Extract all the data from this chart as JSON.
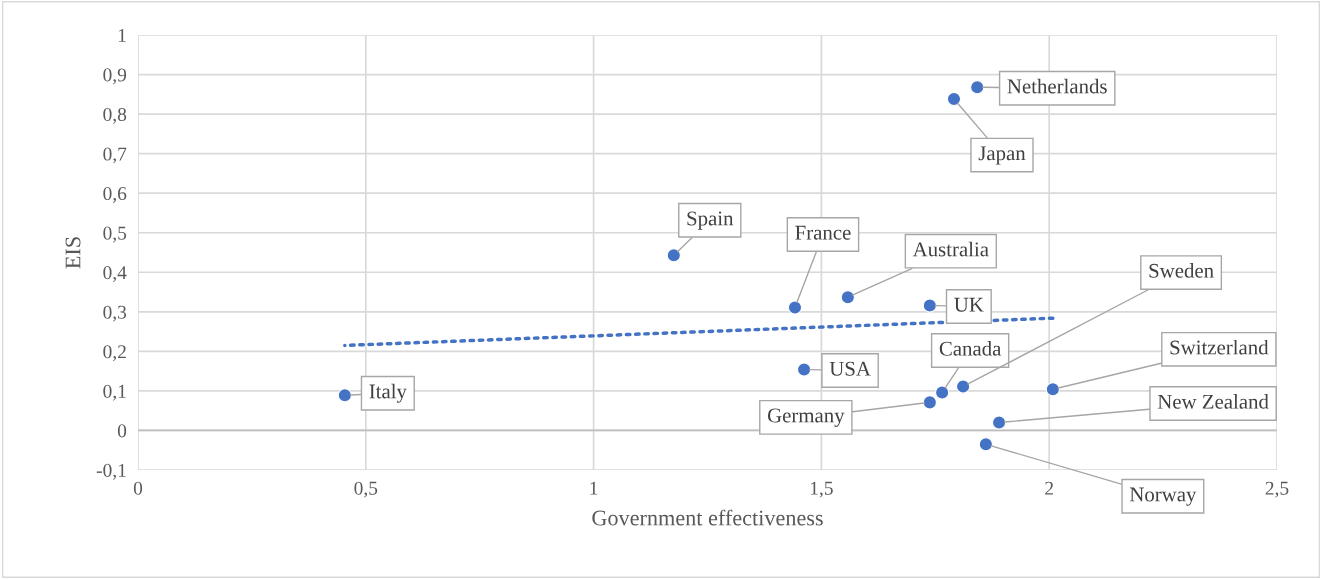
{
  "chart_data": {
    "type": "scatter",
    "xlabel": "Government effectiveness",
    "ylabel": "EIS",
    "xlim": [
      0,
      2.5
    ],
    "ylim": [
      -0.1,
      1
    ],
    "xticks": [
      0,
      {
        "value": 0.5,
        "label": "0,5"
      },
      1,
      {
        "value": 1.5,
        "label": "1,5"
      },
      2,
      {
        "value": 2.5,
        "label": "2,5"
      }
    ],
    "yticks": [
      {
        "value": -0.1,
        "label": "-0,1"
      },
      0,
      {
        "value": 0.1,
        "label": "0,1"
      },
      {
        "value": 0.2,
        "label": "0,2"
      },
      {
        "value": 0.3,
        "label": "0,3"
      },
      {
        "value": 0.4,
        "label": "0,4"
      },
      {
        "value": 0.5,
        "label": "0,5"
      },
      {
        "value": 0.6,
        "label": "0,6"
      },
      {
        "value": 0.7,
        "label": "0,7"
      },
      {
        "value": 0.8,
        "label": "0,8"
      },
      {
        "value": 0.9,
        "label": "0,9"
      },
      1
    ],
    "grid": true,
    "legend": false,
    "marker": "circle",
    "ref_lines": [
      {
        "axis": "y",
        "value": 0,
        "label": null,
        "color": "#bfbfbf"
      }
    ],
    "series": [
      {
        "color": "#4472c4",
        "x": [
          0.454,
          1.176,
          1.442,
          1.558,
          1.738,
          1.462,
          1.842,
          1.791,
          1.765,
          1.811,
          1.738,
          2.008,
          1.89,
          1.861
        ],
        "values": [
          0.089,
          0.443,
          0.311,
          0.337,
          0.316,
          0.154,
          0.868,
          0.838,
          0.096,
          0.111,
          0.071,
          0.104,
          0.02,
          -0.035
        ]
      },
      {
        "type": "line",
        "color": "#4472c4",
        "line_style": "dotted",
        "marker": "none",
        "x": [
          0.454,
          2.008
        ],
        "values": [
          0.215,
          0.284
        ]
      }
    ],
    "annotations": [
      {
        "text": "Italy",
        "x": 0.454,
        "y": 0.089
      },
      {
        "text": "Spain",
        "x": 1.176,
        "y": 0.443
      },
      {
        "text": "France",
        "x": 1.442,
        "y": 0.311
      },
      {
        "text": "Australia",
        "x": 1.558,
        "y": 0.337
      },
      {
        "text": "UK",
        "x": 1.738,
        "y": 0.316
      },
      {
        "text": "USA",
        "x": 1.462,
        "y": 0.154
      },
      {
        "text": "Netherlands",
        "x": 1.842,
        "y": 0.868
      },
      {
        "text": "Japan",
        "x": 1.791,
        "y": 0.838
      },
      {
        "text": "Canada",
        "x": 1.765,
        "y": 0.096
      },
      {
        "text": "Sweden",
        "x": 1.811,
        "y": 0.111
      },
      {
        "text": "Germany",
        "x": 1.738,
        "y": 0.071
      },
      {
        "text": "Switzerland",
        "x": 2.008,
        "y": 0.104
      },
      {
        "text": "New Zealand",
        "x": 1.89,
        "y": 0.02
      },
      {
        "text": "Norway",
        "x": 1.861,
        "y": -0.035
      }
    ]
  }
}
